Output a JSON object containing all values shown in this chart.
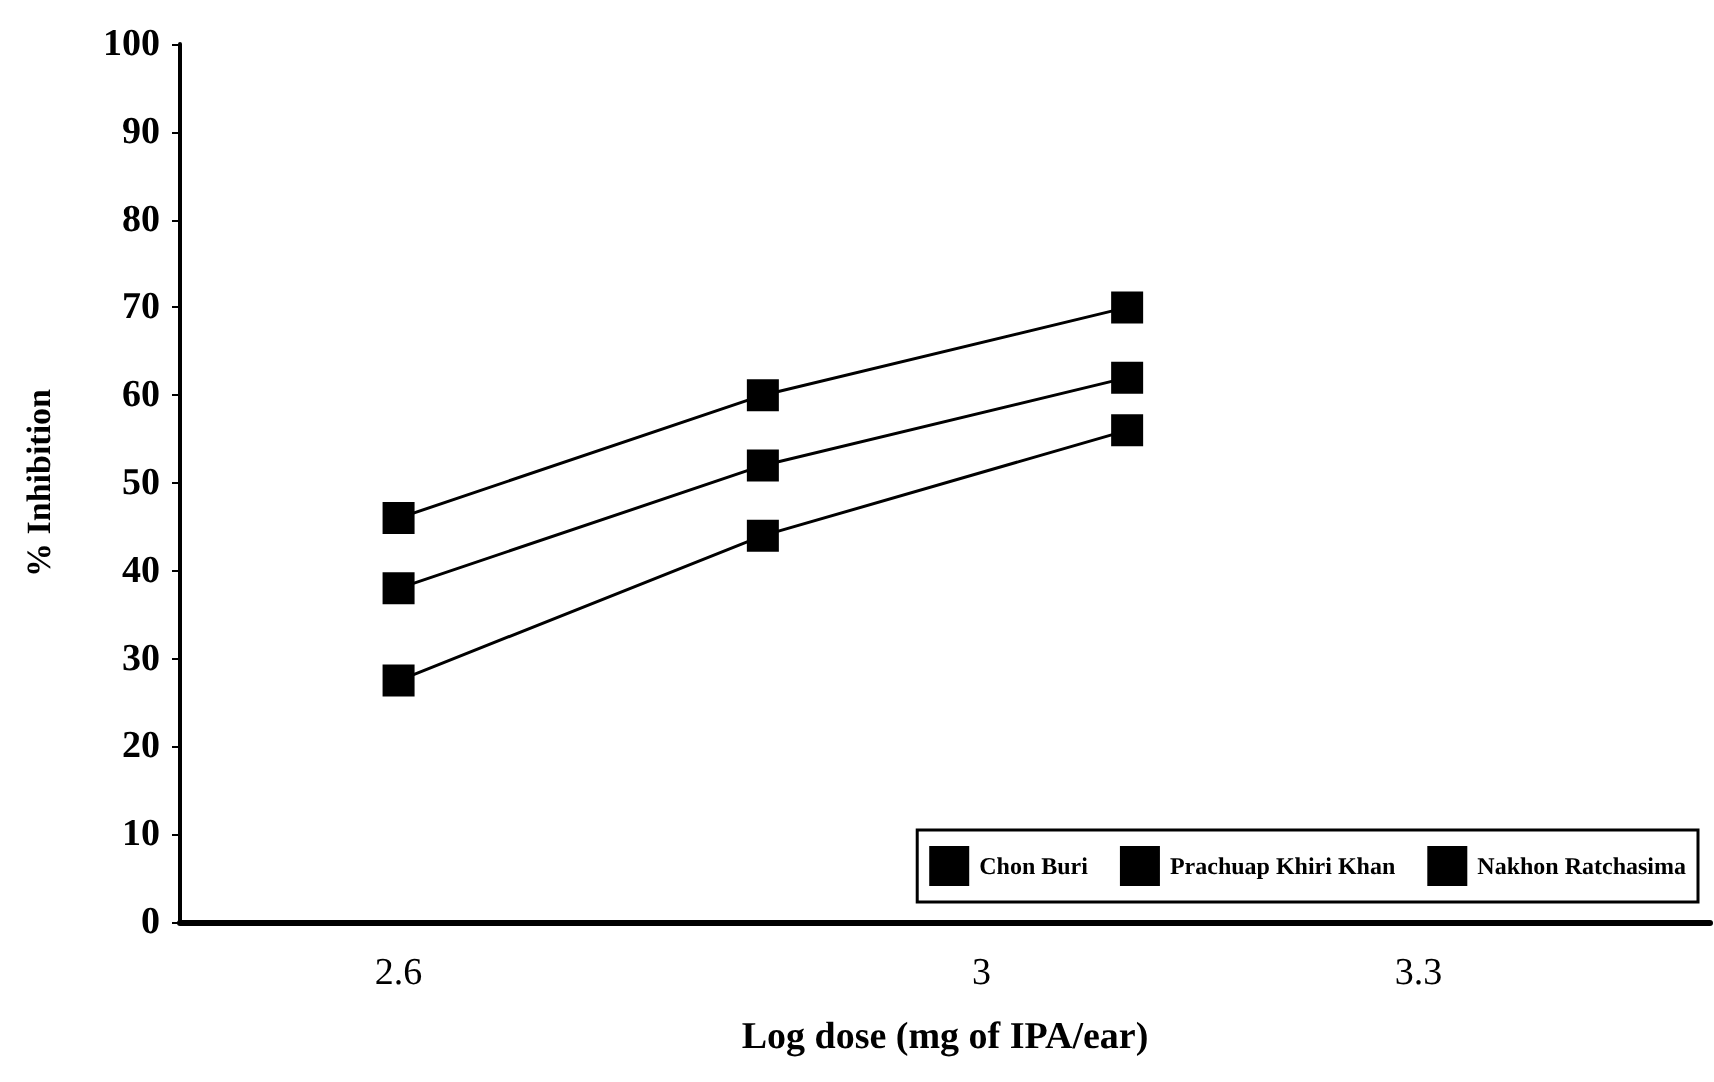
{
  "chart_data": {
    "type": "line",
    "xlabel": "Log dose (mg of IPA/ear)",
    "ylabel": "% Inhibition",
    "x": [
      2.6,
      2.85,
      3.1
    ],
    "series": [
      {
        "name": "Chon Buri",
        "color": "#000000",
        "values": [
          46,
          60,
          70
        ]
      },
      {
        "name": "Prachuap Khiri Khan",
        "color": "#000000",
        "values": [
          38,
          52,
          62
        ]
      },
      {
        "name": "Nakhon Ratchasima",
        "color": "#000000",
        "values": [
          27.5,
          44,
          56
        ]
      }
    ],
    "xlim": [
      2.45,
      3.5
    ],
    "xticks": [
      2.6,
      3,
      3.3
    ],
    "ylim": [
      0,
      100
    ],
    "yticks": [
      0,
      10,
      20,
      30,
      40,
      50,
      60,
      70,
      80,
      90,
      100
    ],
    "grid": false,
    "legend": "bottom right",
    "marker": "square",
    "line_style": "solid"
  }
}
